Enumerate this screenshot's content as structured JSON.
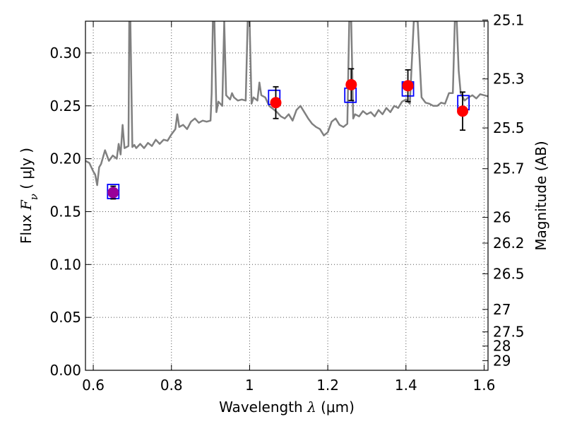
{
  "chart_data": {
    "type": "scatter",
    "title": "",
    "xlabel": {
      "prefix": "Wavelength  ",
      "lambda": "λ",
      "unit": " (μm)"
    },
    "ylabel": {
      "prefix": "Flux  ",
      "F": "F",
      "nu": "ν",
      "unit": "  ( μJy )"
    },
    "ylabel_right": "Magnitude (AB)",
    "xlim": [
      0.58,
      1.61
    ],
    "ylim": [
      0.0,
      0.33
    ],
    "grid": true,
    "x_ticks": [
      {
        "value": 0.6,
        "label": "0.6"
      },
      {
        "value": 0.8,
        "label": "0.8"
      },
      {
        "value": 1.0,
        "label": "1"
      },
      {
        "value": 1.2,
        "label": "1.2"
      },
      {
        "value": 1.4,
        "label": "1.4"
      },
      {
        "value": 1.6,
        "label": "1.6"
      }
    ],
    "y_ticks": [
      {
        "value": 0.0,
        "label": "0.00"
      },
      {
        "value": 0.05,
        "label": "0.05"
      },
      {
        "value": 0.1,
        "label": "0.10"
      },
      {
        "value": 0.15,
        "label": "0.15"
      },
      {
        "value": 0.2,
        "label": "0.20"
      },
      {
        "value": 0.25,
        "label": "0.25"
      },
      {
        "value": 0.3,
        "label": "0.30"
      }
    ],
    "right_ticks": [
      {
        "mag": 25.1,
        "label": "25.1"
      },
      {
        "mag": 25.3,
        "label": "25.3"
      },
      {
        "mag": 25.5,
        "label": "25.5"
      },
      {
        "mag": 25.7,
        "label": "25.7"
      },
      {
        "mag": 26.0,
        "label": "26"
      },
      {
        "mag": 26.2,
        "label": "26.2"
      },
      {
        "mag": 26.5,
        "label": "26.5"
      },
      {
        "mag": 27.0,
        "label": "27"
      },
      {
        "mag": 27.5,
        "label": "27.5"
      },
      {
        "mag": 28.0,
        "label": "28"
      },
      {
        "mag": 29.0,
        "label": "29"
      }
    ],
    "colors": {
      "model": "#808080",
      "observed": "#ff0000",
      "synthetic": "#0000ff",
      "blend": "#990099",
      "errorbar": "#000000",
      "grid": "#555555"
    },
    "series": [
      {
        "kind": "model_spectrum",
        "x": [
          0.58,
          0.59,
          0.6,
          0.605,
          0.61,
          0.615,
          0.62,
          0.63,
          0.64,
          0.65,
          0.66,
          0.665,
          0.67,
          0.675,
          0.68,
          0.69,
          0.692,
          0.695,
          0.7,
          0.705,
          0.71,
          0.72,
          0.73,
          0.74,
          0.75,
          0.76,
          0.77,
          0.78,
          0.79,
          0.8,
          0.81,
          0.815,
          0.82,
          0.83,
          0.84,
          0.85,
          0.86,
          0.87,
          0.88,
          0.89,
          0.9,
          0.903,
          0.906,
          0.91,
          0.915,
          0.92,
          0.93,
          0.935,
          0.94,
          0.95,
          0.955,
          0.96,
          0.97,
          0.98,
          0.99,
          0.995,
          1.0,
          1.005,
          1.01,
          1.02,
          1.025,
          1.03,
          1.04,
          1.05,
          1.06,
          1.07,
          1.08,
          1.09,
          1.1,
          1.11,
          1.12,
          1.13,
          1.14,
          1.15,
          1.16,
          1.17,
          1.18,
          1.19,
          1.2,
          1.21,
          1.22,
          1.23,
          1.24,
          1.25,
          1.255,
          1.26,
          1.265,
          1.27,
          1.28,
          1.29,
          1.3,
          1.31,
          1.32,
          1.33,
          1.34,
          1.35,
          1.36,
          1.37,
          1.38,
          1.39,
          1.4,
          1.41,
          1.42,
          1.43,
          1.44,
          1.45,
          1.46,
          1.47,
          1.48,
          1.49,
          1.5,
          1.51,
          1.52,
          1.525,
          1.53,
          1.535,
          1.54,
          1.55,
          1.56,
          1.57,
          1.58,
          1.59,
          1.6,
          1.61
        ],
        "y": [
          0.198,
          0.196,
          0.188,
          0.185,
          0.175,
          0.192,
          0.195,
          0.208,
          0.198,
          0.203,
          0.2,
          0.214,
          0.204,
          0.232,
          0.21,
          0.212,
          0.33,
          0.33,
          0.211,
          0.213,
          0.21,
          0.214,
          0.21,
          0.215,
          0.212,
          0.218,
          0.214,
          0.218,
          0.217,
          0.223,
          0.228,
          0.242,
          0.23,
          0.232,
          0.228,
          0.235,
          0.238,
          0.234,
          0.236,
          0.235,
          0.236,
          0.262,
          0.33,
          0.33,
          0.244,
          0.254,
          0.25,
          0.33,
          0.26,
          0.256,
          0.262,
          0.258,
          0.255,
          0.256,
          0.255,
          0.33,
          0.33,
          0.252,
          0.258,
          0.255,
          0.272,
          0.26,
          0.258,
          0.25,
          0.247,
          0.244,
          0.24,
          0.238,
          0.242,
          0.236,
          0.246,
          0.25,
          0.244,
          0.238,
          0.233,
          0.23,
          0.228,
          0.222,
          0.225,
          0.235,
          0.238,
          0.232,
          0.23,
          0.233,
          0.33,
          0.33,
          0.238,
          0.242,
          0.24,
          0.245,
          0.242,
          0.244,
          0.24,
          0.246,
          0.242,
          0.248,
          0.244,
          0.25,
          0.248,
          0.254,
          0.256,
          0.252,
          0.33,
          0.33,
          0.258,
          0.253,
          0.252,
          0.25,
          0.25,
          0.253,
          0.252,
          0.262,
          0.262,
          0.33,
          0.33,
          0.283,
          0.262,
          0.255,
          0.258,
          0.26,
          0.257,
          0.261,
          0.26,
          0.259
        ]
      },
      {
        "kind": "observed_with_errors",
        "points": [
          {
            "x": 0.651,
            "y": 0.168,
            "yerr": 0.006
          },
          {
            "x": 1.067,
            "y": 0.253,
            "yerr": 0.015
          },
          {
            "x": 1.26,
            "y": 0.27,
            "yerr": 0.015
          },
          {
            "x": 1.405,
            "y": 0.269,
            "yerr": 0.015
          },
          {
            "x": 1.545,
            "y": 0.245,
            "yerr": 0.018
          }
        ]
      },
      {
        "kind": "model_synthetic_photometry",
        "points": [
          {
            "x": 0.651,
            "y": 0.169
          },
          {
            "x": 1.063,
            "y": 0.258
          },
          {
            "x": 1.258,
            "y": 0.26
          },
          {
            "x": 1.405,
            "y": 0.266
          },
          {
            "x": 1.547,
            "y": 0.253
          }
        ]
      }
    ]
  }
}
